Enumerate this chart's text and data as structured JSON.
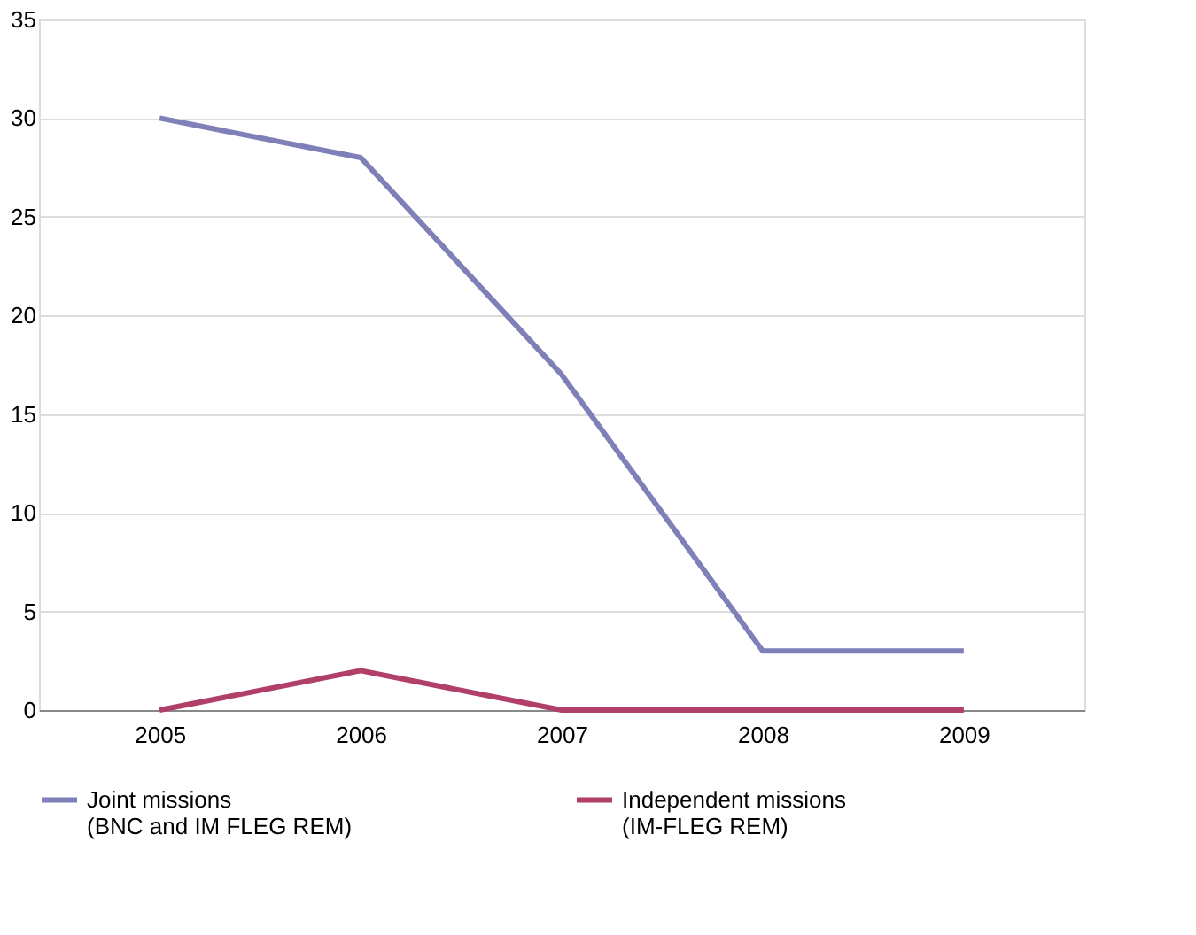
{
  "chart_data": {
    "type": "line",
    "categories": [
      "2005",
      "2006",
      "2007",
      "2008",
      "2009"
    ],
    "series": [
      {
        "name": "Joint missions\n(BNC and IM FLEG REM)",
        "color": "#8080b8",
        "values": [
          30,
          28,
          17,
          3,
          3
        ]
      },
      {
        "name": "Independent missions\n(IM-FLEG REM)",
        "color": "#b0406a",
        "values": [
          0,
          2,
          0,
          0,
          0
        ]
      }
    ],
    "ylim": [
      0,
      35
    ],
    "yticks": [
      0,
      5,
      10,
      15,
      20,
      25,
      30,
      35
    ],
    "grid": "y",
    "legend": "bottom",
    "marker": "none",
    "line_style": "solid"
  }
}
